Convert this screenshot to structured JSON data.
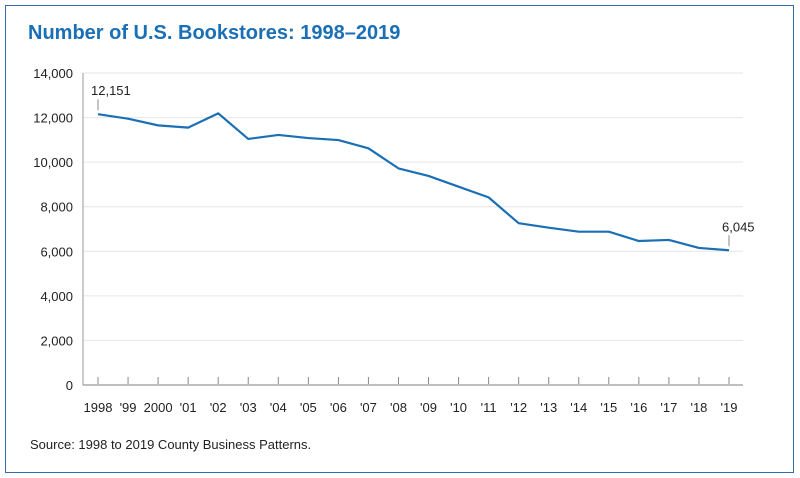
{
  "title": "Number of U.S. Bookstores: 1998–2019",
  "source": "Source: 1998 to 2019 County Business Patterns.",
  "colors": {
    "line": "#1a6fb5",
    "title": "#1a6fb5",
    "border": "#2f6db3"
  },
  "chart_data": {
    "type": "line",
    "title": "Number of U.S. Bookstores: 1998–2019",
    "xlabel": "",
    "ylabel": "",
    "x": [
      1998,
      1999,
      2000,
      2001,
      2002,
      2003,
      2004,
      2005,
      2006,
      2007,
      2008,
      2009,
      2010,
      2011,
      2012,
      2013,
      2014,
      2015,
      2016,
      2017,
      2018,
      2019
    ],
    "x_tick_labels": [
      "1998",
      "'99",
      "2000",
      "'01",
      "'02",
      "'03",
      "'04",
      "'05",
      "'06",
      "'07",
      "'08",
      "'09",
      "'10",
      "'11",
      "'12",
      "'13",
      "'14",
      "'15",
      "'16",
      "'17",
      "'18",
      "'19"
    ],
    "series": [
      {
        "values": [
          12151,
          11950,
          11650,
          11550,
          12190,
          11040,
          11220,
          11080,
          10990,
          10620,
          9720,
          9380,
          8900,
          8420,
          7260,
          7060,
          6880,
          6880,
          6460,
          6510,
          6150,
          6045
        ]
      }
    ],
    "ylim": [
      0,
      14000
    ],
    "y_ticks": [
      0,
      2000,
      4000,
      6000,
      8000,
      10000,
      12000,
      14000
    ],
    "y_tick_labels": [
      "0",
      "2,000",
      "4,000",
      "6,000",
      "8,000",
      "10,000",
      "12,000",
      "14,000"
    ],
    "annotations": [
      {
        "x": 1998,
        "label": "12,151"
      },
      {
        "x": 2019,
        "label": "6,045"
      }
    ],
    "grid": true,
    "legend": "none"
  }
}
